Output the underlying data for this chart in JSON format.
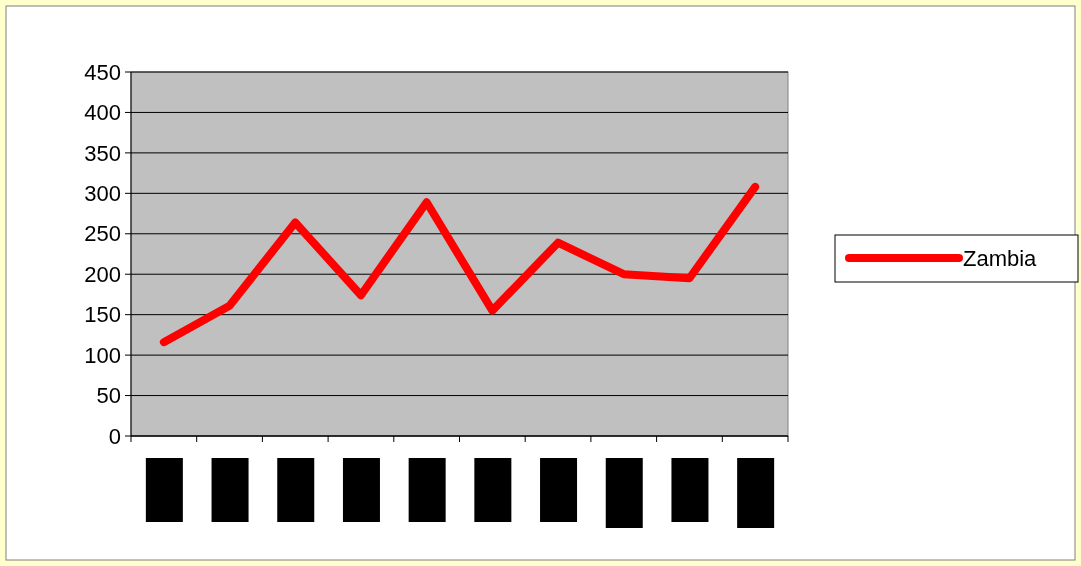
{
  "chart_data": {
    "type": "line",
    "categories": [
      null,
      null,
      null,
      null,
      null,
      null,
      null,
      null,
      null,
      null
    ],
    "series": [
      {
        "name": "Zambia",
        "color": "#ff0000",
        "values": [
          116,
          161,
          264,
          174,
          289,
          155,
          239,
          200,
          195,
          308
        ]
      }
    ],
    "ylim": [
      0,
      450
    ],
    "yticks": [
      0,
      50,
      100,
      150,
      200,
      250,
      300,
      350,
      400,
      450
    ],
    "grid": "y",
    "legend": "right",
    "marker": "none",
    "line_style": "solid"
  }
}
